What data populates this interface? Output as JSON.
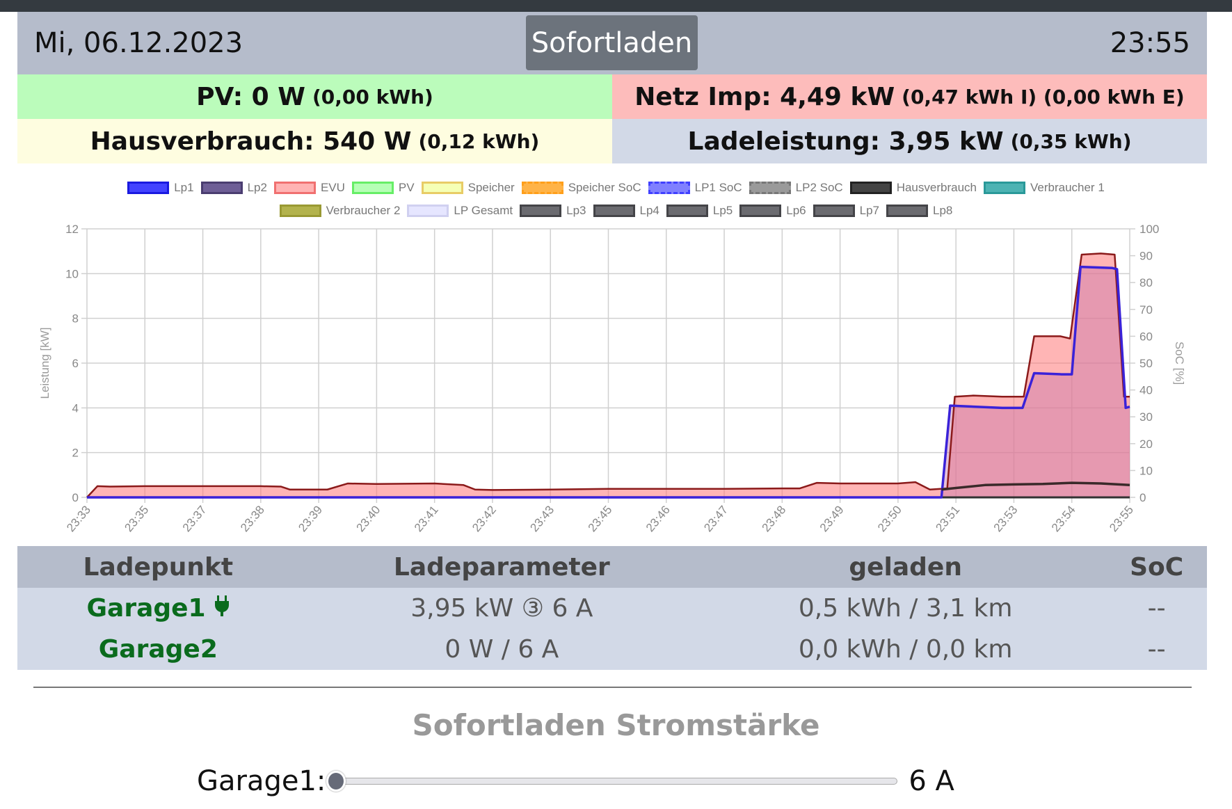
{
  "header": {
    "date": "Mi, 06.12.2023",
    "mode_button": "Sofortladen",
    "time": "23:55"
  },
  "stats": {
    "pv": {
      "label": "PV: 0 W",
      "sub": "(0,00 kWh)",
      "color": "#bbfcbb"
    },
    "netz": {
      "label": "Netz Imp: 4,49 kW",
      "sub": "(0,47 kWh I) (0,00 kWh E)",
      "color": "#fdbcbb"
    },
    "haus": {
      "label": "Hausverbrauch: 540 W",
      "sub": "(0,12 kWh)",
      "color": "#fefde0"
    },
    "lade": {
      "label": "Ladeleistung: 3,95 kW",
      "sub": "(0,35 kWh)",
      "color": "#d2d9e7"
    }
  },
  "legend_row1": [
    {
      "label": "Lp1",
      "fill": "#4343ff",
      "border": "#1a1ae0"
    },
    {
      "label": "Lp2",
      "fill": "#6e5e96",
      "border": "#4a3d70"
    },
    {
      "label": "EVU",
      "fill": "#ffb3b3",
      "border": "#f07070"
    },
    {
      "label": "PV",
      "fill": "#b5ffb5",
      "border": "#66ee66"
    },
    {
      "label": "Speicher",
      "fill": "#f5ffb5",
      "border": "#e8cc66"
    },
    {
      "label": "Speicher SoC",
      "fill": "#ffb347",
      "border": "#ff9f1a"
    },
    {
      "label": "LP1 SoC",
      "fill": "#8080ff",
      "border": "#4040ff"
    },
    {
      "label": "LP2 SoC",
      "fill": "#9a9a9a",
      "border": "#777777"
    },
    {
      "label": "Hausverbrauch",
      "fill": "#444444",
      "border": "#222222"
    },
    {
      "label": "Verbraucher 1",
      "fill": "#4db3b3",
      "border": "#2a9999"
    }
  ],
  "legend_row2": [
    {
      "label": "Verbraucher 2",
      "fill": "#b3b34d",
      "border": "#999933"
    },
    {
      "label": "LP Gesamt",
      "fill": "#e6e6ff",
      "border": "#d0d0f0"
    },
    {
      "label": "Lp3",
      "fill": "#6b6b70",
      "border": "#444448"
    },
    {
      "label": "Lp4",
      "fill": "#6b6b70",
      "border": "#444448"
    },
    {
      "label": "Lp5",
      "fill": "#6b6b70",
      "border": "#444448"
    },
    {
      "label": "Lp6",
      "fill": "#6b6b70",
      "border": "#444448"
    },
    {
      "label": "Lp7",
      "fill": "#6b6b70",
      "border": "#444448"
    },
    {
      "label": "Lp8",
      "fill": "#6b6b70",
      "border": "#444448"
    }
  ],
  "chart_data": {
    "type": "line",
    "x_labels": [
      "23:33",
      "23:35",
      "23:37",
      "23:38",
      "23:39",
      "23:40",
      "23:41",
      "23:42",
      "23:43",
      "23:45",
      "23:46",
      "23:47",
      "23:48",
      "23:49",
      "23:50",
      "23:51",
      "23:53",
      "23:54",
      "23:55"
    ],
    "ylabel": "Leistung [kW]",
    "ylim": [
      0,
      12
    ],
    "yticks": [
      "0",
      "2",
      "4",
      "6",
      "8",
      "10",
      "12"
    ],
    "y2label": "SoC [%]",
    "y2lim": [
      0,
      100
    ],
    "y2ticks": [
      "0",
      "10",
      "20",
      "30",
      "40",
      "50",
      "60",
      "70",
      "80",
      "90",
      "100"
    ],
    "grid": true,
    "series": [
      {
        "name": "EVU",
        "fill": "rgba(255,120,120,0.55)",
        "stroke": "#8b1a1a",
        "points": [
          [
            0,
            0
          ],
          [
            0.18,
            0.5
          ],
          [
            0.4,
            0.48
          ],
          [
            1,
            0.5
          ],
          [
            2,
            0.5
          ],
          [
            3,
            0.5
          ],
          [
            3.35,
            0.48
          ],
          [
            3.5,
            0.35
          ],
          [
            4.15,
            0.35
          ],
          [
            4.5,
            0.62
          ],
          [
            5,
            0.6
          ],
          [
            6,
            0.62
          ],
          [
            6.5,
            0.55
          ],
          [
            6.7,
            0.35
          ],
          [
            7,
            0.33
          ],
          [
            8,
            0.35
          ],
          [
            9,
            0.38
          ],
          [
            10,
            0.38
          ],
          [
            11,
            0.38
          ],
          [
            12,
            0.4
          ],
          [
            12.3,
            0.4
          ],
          [
            12.6,
            0.65
          ],
          [
            13,
            0.62
          ],
          [
            14,
            0.62
          ],
          [
            14.3,
            0.68
          ],
          [
            14.55,
            0.35
          ],
          [
            14.85,
            0.4
          ],
          [
            14.98,
            4.5
          ],
          [
            15.3,
            4.55
          ],
          [
            15.8,
            4.5
          ],
          [
            16.17,
            4.5
          ],
          [
            16.35,
            7.2
          ],
          [
            16.8,
            7.2
          ],
          [
            16.97,
            7.1
          ],
          [
            17.17,
            10.85
          ],
          [
            17.5,
            10.9
          ],
          [
            17.74,
            10.85
          ],
          [
            17.9,
            4.5
          ],
          [
            18,
            4.5
          ]
        ]
      },
      {
        "name": "Lp1",
        "fill": "rgba(200,120,170,0.45)",
        "stroke": "#3a22d8",
        "points": [
          [
            0,
            0
          ],
          [
            14.75,
            0
          ],
          [
            14.9,
            4.1
          ],
          [
            15.8,
            4.0
          ],
          [
            16.15,
            4.0
          ],
          [
            16.35,
            5.55
          ],
          [
            16.82,
            5.5
          ],
          [
            17.0,
            5.5
          ],
          [
            17.15,
            10.3
          ],
          [
            17.7,
            10.25
          ],
          [
            17.78,
            10.2
          ],
          [
            17.93,
            4.0
          ],
          [
            18,
            4.05
          ]
        ]
      },
      {
        "name": "Hausverbrauch",
        "fill": "none",
        "stroke": "#3a2a2a",
        "points": [
          [
            14.75,
            0.35
          ],
          [
            15,
            0.42
          ],
          [
            15.5,
            0.55
          ],
          [
            16,
            0.58
          ],
          [
            16.5,
            0.6
          ],
          [
            17,
            0.65
          ],
          [
            17.5,
            0.62
          ],
          [
            18,
            0.55
          ]
        ]
      }
    ]
  },
  "table": {
    "headers": [
      "Ladepunkt",
      "Ladeparameter",
      "geladen",
      "SoC"
    ],
    "rows": [
      {
        "name": "Garage1",
        "params": "3,95 kW ③ 6 A",
        "charged": "0,5 kWh / 3,1 km",
        "soc": "--"
      },
      {
        "name": "Garage2",
        "params": "0 W / 6 A",
        "charged": "0,0 kWh / 0,0 km",
        "soc": "--"
      }
    ]
  },
  "sofort": {
    "title": "Sofortladen Stromstärke",
    "label": "Garage1:",
    "value": "6 A",
    "slider_fraction": 0.0
  }
}
